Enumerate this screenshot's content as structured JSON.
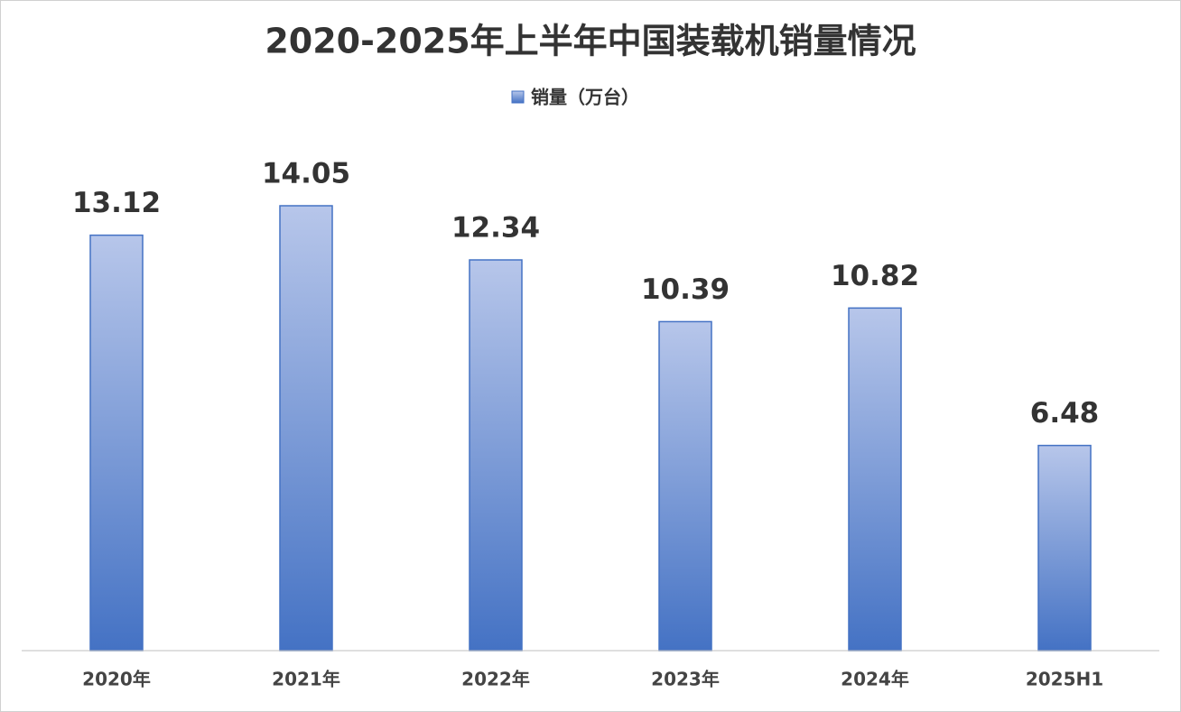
{
  "chart_data": {
    "type": "bar",
    "title": "2020-2025年上半年中国装载机销量情况",
    "legend_position": "top",
    "categories": [
      "2020年",
      "2021年",
      "2022年",
      "2023年",
      "2024年",
      "2025H1"
    ],
    "series": [
      {
        "name": "销量（万台）",
        "color": "#4472c4",
        "values": [
          13.12,
          14.05,
          12.34,
          10.39,
          10.82,
          6.48
        ]
      }
    ]
  }
}
